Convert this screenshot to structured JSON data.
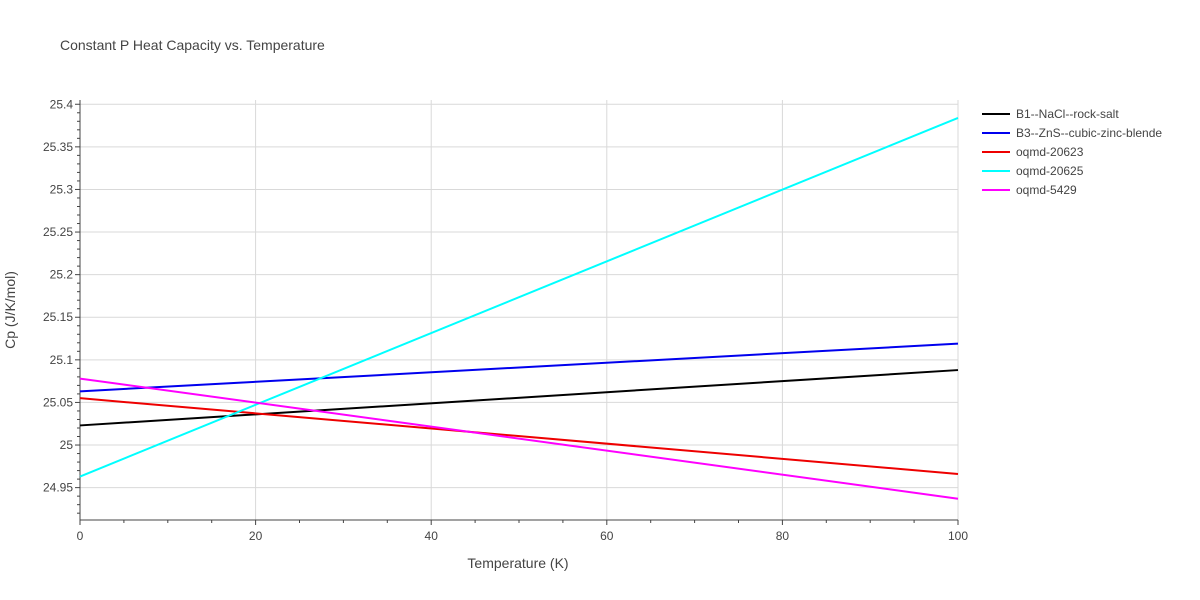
{
  "chart_data": {
    "type": "line",
    "title": "Constant P Heat Capacity vs. Temperature",
    "xlabel": "Temperature (K)",
    "ylabel": "Cp (J/K/mol)",
    "xlim": [
      0,
      100
    ],
    "ylim": [
      24.912,
      25.405
    ],
    "xticks": [
      0,
      20,
      40,
      60,
      80,
      100
    ],
    "yticks": [
      24.95,
      25,
      25.05,
      25.1,
      25.15,
      25.2,
      25.25,
      25.3,
      25.35,
      25.4
    ],
    "ytick_labels": [
      "24.95",
      "25",
      "25.05",
      "25.1",
      "25.15",
      "25.2",
      "25.25",
      "25.3",
      "25.35",
      "25.4"
    ],
    "grid": true,
    "legend_position": "right",
    "series": [
      {
        "name": "B1--NaCl--rock-salt",
        "color": "#000000",
        "x": [
          0,
          100
        ],
        "y": [
          25.023,
          25.088
        ]
      },
      {
        "name": "B3--ZnS--cubic-zinc-blende",
        "color": "#0000ee",
        "x": [
          0,
          100
        ],
        "y": [
          25.063,
          25.119
        ]
      },
      {
        "name": "oqmd-20623",
        "color": "#ee0000",
        "x": [
          0,
          100
        ],
        "y": [
          25.055,
          24.966
        ]
      },
      {
        "name": "oqmd-20625",
        "color": "#00ffff",
        "x": [
          0,
          100
        ],
        "y": [
          24.963,
          25.384
        ]
      },
      {
        "name": "oqmd-5429",
        "color": "#ff00ff",
        "x": [
          0,
          100
        ],
        "y": [
          25.078,
          24.937
        ]
      }
    ]
  }
}
